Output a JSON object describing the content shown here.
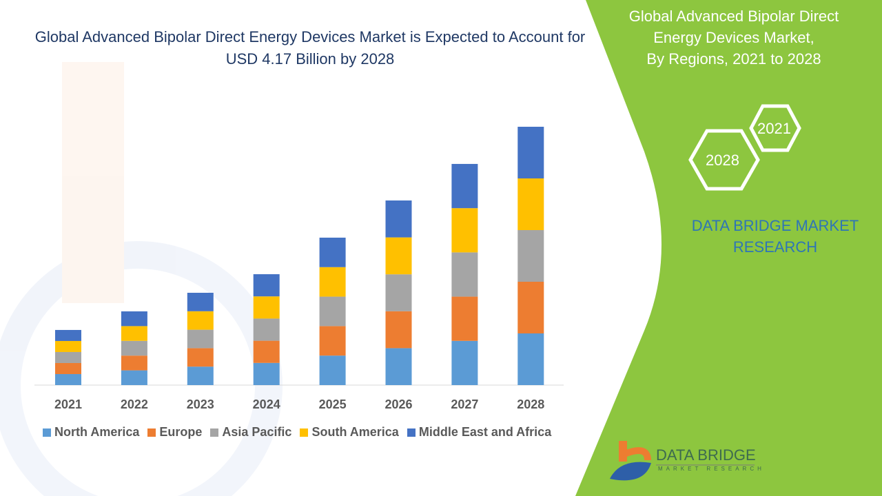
{
  "title": "Global Advanced Bipolar Direct Energy Devices Market is Expected to Account for USD 4.17 Billion by 2028",
  "side_panel": {
    "title_lines": [
      "Global Advanced Bipolar Direct",
      "Energy Devices Market,",
      "By Regions, 2021 to 2028"
    ],
    "hex_labels": [
      "2021",
      "2028"
    ],
    "brand_lines": [
      "DATA BRIDGE MARKET",
      "RESEARCH"
    ],
    "logo_text": "DATA BRIDGE",
    "logo_subtext": "MARKET RESEARCH",
    "panel_color": "#8dc63f"
  },
  "chart_data": {
    "type": "bar",
    "stacked": true,
    "title": "Global Advanced Bipolar Direct Energy Devices Market is Expected to Account for USD 4.17 Billion by 2028",
    "xlabel": "",
    "ylabel": "",
    "grid": false,
    "legend_placement": "bottom",
    "categories": [
      "2021",
      "2022",
      "2023",
      "2024",
      "2025",
      "2026",
      "2027",
      "2028"
    ],
    "series": [
      {
        "name": "North America",
        "color": "#5b9bd5",
        "values": [
          0.178,
          0.238,
          0.298,
          0.358,
          0.476,
          0.596,
          0.714,
          0.834
        ]
      },
      {
        "name": "Europe",
        "color": "#ed7d31",
        "values": [
          0.178,
          0.238,
          0.298,
          0.358,
          0.476,
          0.596,
          0.714,
          0.834
        ]
      },
      {
        "name": "Asia Pacific",
        "color": "#a5a5a5",
        "values": [
          0.178,
          0.238,
          0.298,
          0.358,
          0.476,
          0.596,
          0.714,
          0.834
        ]
      },
      {
        "name": "South America",
        "color": "#ffc000",
        "values": [
          0.178,
          0.238,
          0.298,
          0.358,
          0.476,
          0.596,
          0.714,
          0.834
        ]
      },
      {
        "name": "Middle East and Africa",
        "color": "#4472c4",
        "values": [
          0.178,
          0.238,
          0.298,
          0.358,
          0.476,
          0.596,
          0.714,
          0.834
        ]
      }
    ],
    "ylim": [
      0,
      4.17
    ]
  }
}
